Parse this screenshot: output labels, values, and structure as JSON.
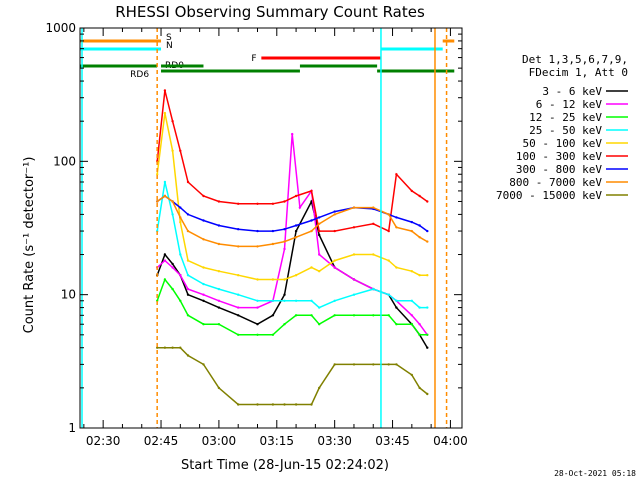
{
  "chart_data": {
    "type": "line",
    "title": "RHESSI Observing Summary Count Rates",
    "xlabel": "Start Time (28-Jun-15 02:24:02)",
    "ylabel": "Count Rate (s⁻¹ detector⁻¹)",
    "y_scale": "log",
    "ylim": [
      1,
      1000
    ],
    "xlim": [
      "02:24",
      "04:03"
    ],
    "x_ticks": [
      "02:30",
      "02:45",
      "03:00",
      "03:15",
      "03:30",
      "03:45",
      "04:00"
    ],
    "y_ticks": [
      "1",
      "10",
      "100",
      "1000"
    ],
    "footer_date": "28-Oct-2021 05:18",
    "legend": {
      "header_lines": [
        "Det 1,3,5,6,7,9,",
        "FDecim 1, Att 0"
      ],
      "placement": "right"
    },
    "series": [
      {
        "name": "3 - 6 keV",
        "color": "#000000",
        "x": [
          "02:44",
          "02:46",
          "02:48",
          "02:50",
          "02:52",
          "02:56",
          "03:00",
          "03:05",
          "03:10",
          "03:14",
          "03:17",
          "03:20",
          "03:24",
          "03:26",
          "03:30",
          "03:35",
          "03:40",
          "03:44",
          "03:46",
          "03:50",
          "03:52",
          "03:54"
        ],
        "y": [
          14,
          20,
          17,
          14,
          10,
          9,
          8,
          7,
          6,
          7,
          10,
          30,
          50,
          28,
          16,
          13,
          11,
          10,
          8,
          6,
          5,
          4
        ]
      },
      {
        "name": "6 - 12 keV",
        "color": "#ff00ff",
        "x": [
          "02:44",
          "02:46",
          "02:48",
          "02:50",
          "02:52",
          "02:56",
          "03:00",
          "03:05",
          "03:10",
          "03:14",
          "03:17",
          "03:19",
          "03:21",
          "03:24",
          "03:26",
          "03:30",
          "03:35",
          "03:40",
          "03:44",
          "03:46",
          "03:50",
          "03:52",
          "03:54"
        ],
        "y": [
          16,
          18,
          16,
          14,
          11,
          10,
          9,
          8,
          8,
          9,
          22,
          160,
          45,
          60,
          20,
          16,
          13,
          11,
          10,
          9,
          7,
          6,
          5
        ]
      },
      {
        "name": "12 - 25 keV",
        "color": "#00ff00",
        "x": [
          "02:44",
          "02:46",
          "02:48",
          "02:50",
          "02:52",
          "02:56",
          "03:00",
          "03:05",
          "03:10",
          "03:14",
          "03:17",
          "03:20",
          "03:24",
          "03:26",
          "03:30",
          "03:35",
          "03:40",
          "03:44",
          "03:46",
          "03:50",
          "03:52",
          "03:54"
        ],
        "y": [
          9,
          13,
          11,
          9,
          7,
          6,
          6,
          5,
          5,
          5,
          6,
          7,
          7,
          6,
          7,
          7,
          7,
          7,
          6,
          6,
          5,
          5
        ]
      },
      {
        "name": "25 - 50 keV",
        "color": "#00ffff",
        "x": [
          "02:44",
          "02:46",
          "02:48",
          "02:50",
          "02:52",
          "02:56",
          "03:00",
          "03:05",
          "03:10",
          "03:14",
          "03:17",
          "03:20",
          "03:24",
          "03:26",
          "03:30",
          "03:35",
          "03:40",
          "03:44",
          "03:46",
          "03:50",
          "03:52",
          "03:54"
        ],
        "y": [
          30,
          70,
          40,
          20,
          14,
          12,
          11,
          10,
          9,
          9,
          9,
          9,
          9,
          8,
          9,
          10,
          11,
          10,
          9,
          9,
          8,
          8
        ]
      },
      {
        "name": "50 - 100 keV",
        "color": "#ffd700",
        "x": [
          "02:44",
          "02:46",
          "02:48",
          "02:50",
          "02:52",
          "02:56",
          "03:00",
          "03:05",
          "03:10",
          "03:14",
          "03:17",
          "03:20",
          "03:24",
          "03:26",
          "03:30",
          "03:35",
          "03:40",
          "03:44",
          "03:46",
          "03:50",
          "03:52",
          "03:54"
        ],
        "y": [
          80,
          230,
          120,
          35,
          18,
          16,
          15,
          14,
          13,
          13,
          13,
          14,
          16,
          15,
          18,
          20,
          20,
          18,
          16,
          15,
          14,
          14
        ]
      },
      {
        "name": "100 - 300 keV",
        "color": "#ff0000",
        "x": [
          "02:44",
          "02:46",
          "02:48",
          "02:50",
          "02:52",
          "02:56",
          "03:00",
          "03:05",
          "03:10",
          "03:14",
          "03:17",
          "03:20",
          "03:24",
          "03:26",
          "03:30",
          "03:35",
          "03:40",
          "03:44",
          "03:46",
          "03:50",
          "03:52",
          "03:54"
        ],
        "y": [
          100,
          340,
          200,
          120,
          70,
          55,
          50,
          48,
          48,
          48,
          50,
          55,
          60,
          30,
          30,
          32,
          34,
          30,
          80,
          60,
          55,
          50
        ]
      },
      {
        "name": "300 - 800 keV",
        "color": "#0000ff",
        "x": [
          "02:44",
          "02:46",
          "02:48",
          "02:50",
          "02:52",
          "02:56",
          "03:00",
          "03:05",
          "03:10",
          "03:14",
          "03:17",
          "03:20",
          "03:24",
          "03:26",
          "03:30",
          "03:35",
          "03:40",
          "03:44",
          "03:46",
          "03:50",
          "03:52",
          "03:54"
        ],
        "y": [
          50,
          55,
          50,
          45,
          40,
          36,
          33,
          31,
          30,
          30,
          31,
          33,
          36,
          38,
          42,
          45,
          44,
          40,
          38,
          35,
          33,
          30
        ]
      },
      {
        "name": "800 - 7000 keV",
        "color": "#ff8c00",
        "x": [
          "02:44",
          "02:46",
          "02:48",
          "02:50",
          "02:52",
          "02:56",
          "03:00",
          "03:05",
          "03:10",
          "03:14",
          "03:17",
          "03:20",
          "03:24",
          "03:26",
          "03:30",
          "03:35",
          "03:40",
          "03:44",
          "03:46",
          "03:50",
          "03:52",
          "03:54"
        ],
        "y": [
          50,
          55,
          50,
          38,
          30,
          26,
          24,
          23,
          23,
          24,
          25,
          27,
          30,
          34,
          40,
          45,
          45,
          40,
          32,
          30,
          27,
          25
        ]
      },
      {
        "name": "7000 - 15000 keV",
        "color": "#808000",
        "x": [
          "02:44",
          "02:46",
          "02:48",
          "02:50",
          "02:52",
          "02:56",
          "03:00",
          "03:05",
          "03:10",
          "03:14",
          "03:17",
          "03:20",
          "03:24",
          "03:26",
          "03:30",
          "03:35",
          "03:40",
          "03:44",
          "03:46",
          "03:50",
          "03:52",
          "03:54"
        ],
        "y": [
          4,
          4,
          4,
          4,
          3.5,
          3,
          2,
          1.5,
          1.5,
          1.5,
          1.5,
          1.5,
          1.5,
          2,
          3,
          3,
          3,
          3,
          3,
          2.5,
          2,
          1.8
        ]
      }
    ],
    "state_bars": [
      {
        "label": "S",
        "color": "#ff8c00",
        "segments": [
          [
            "02:24",
            "02:45"
          ],
          [
            "03:58",
            "04:01"
          ]
        ]
      },
      {
        "label": "N",
        "color": "#00ffff",
        "segments": [
          [
            "02:24",
            "02:45"
          ],
          [
            "03:42",
            "03:58"
          ]
        ]
      },
      {
        "label": "F",
        "color": "#ff0000",
        "segments": [
          [
            "03:11",
            "03:42"
          ]
        ]
      },
      {
        "label": "RD0",
        "color": "#008000",
        "segments": [
          [
            "02:45",
            "03:21"
          ],
          [
            "03:41",
            "04:01"
          ]
        ]
      },
      {
        "label": "RD6",
        "color": "#008000",
        "segments": [
          [
            "02:24",
            "02:44"
          ],
          [
            "02:45",
            "02:56"
          ],
          [
            "03:21",
            "03:41"
          ]
        ]
      }
    ],
    "vertical_markers": [
      {
        "time": "02:24",
        "color": "#00ffff",
        "style": "solid"
      },
      {
        "time": "02:44",
        "color": "#ff8c00",
        "style": "dashed"
      },
      {
        "time": "03:42",
        "color": "#00ffff",
        "style": "solid"
      },
      {
        "time": "03:56",
        "color": "#ff8c00",
        "style": "solid"
      },
      {
        "time": "03:59",
        "color": "#ff8c00",
        "style": "dashed"
      }
    ]
  }
}
